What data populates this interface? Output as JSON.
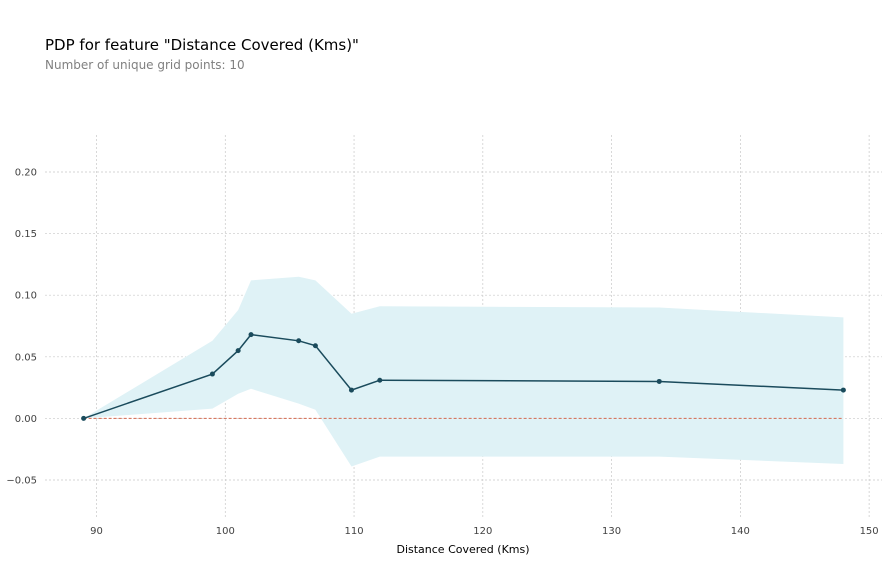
{
  "chart_data": {
    "type": "line",
    "title": "PDP for feature \"Distance Covered (Kms)\"",
    "subtitle": "Number of unique grid points: 10",
    "xlabel": "Distance Covered (Kms)",
    "ylabel": "",
    "xlim": [
      86,
      151
    ],
    "ylim": [
      -0.08,
      0.23
    ],
    "xticks": [
      90,
      100,
      110,
      120,
      130,
      140,
      150
    ],
    "yticks": [
      -0.05,
      0.0,
      0.05,
      0.1,
      0.15,
      0.2
    ],
    "ytick_labels": [
      "−0.05",
      "0.00",
      "0.05",
      "0.10",
      "0.15",
      "0.20"
    ],
    "grid": true,
    "series": [
      {
        "x": [
          89,
          99,
          101,
          102,
          105.7,
          107,
          109.8,
          112,
          133.7,
          148
        ],
        "values": [
          0.0,
          0.036,
          0.055,
          0.068,
          0.063,
          0.059,
          0.023,
          0.031,
          0.03,
          0.023
        ],
        "upper": [
          0.0,
          0.063,
          0.088,
          0.112,
          0.115,
          0.112,
          0.085,
          0.091,
          0.09,
          0.082
        ],
        "lower": [
          0.0,
          0.008,
          0.02,
          0.024,
          0.012,
          0.007,
          -0.039,
          -0.031,
          -0.031,
          -0.037
        ]
      }
    ],
    "baseline": 0.0,
    "colors": {
      "line": "#1a4b5c",
      "band": "#dff2f6",
      "baseline": "#d46a4f",
      "grid": "#c8c8c8"
    }
  }
}
